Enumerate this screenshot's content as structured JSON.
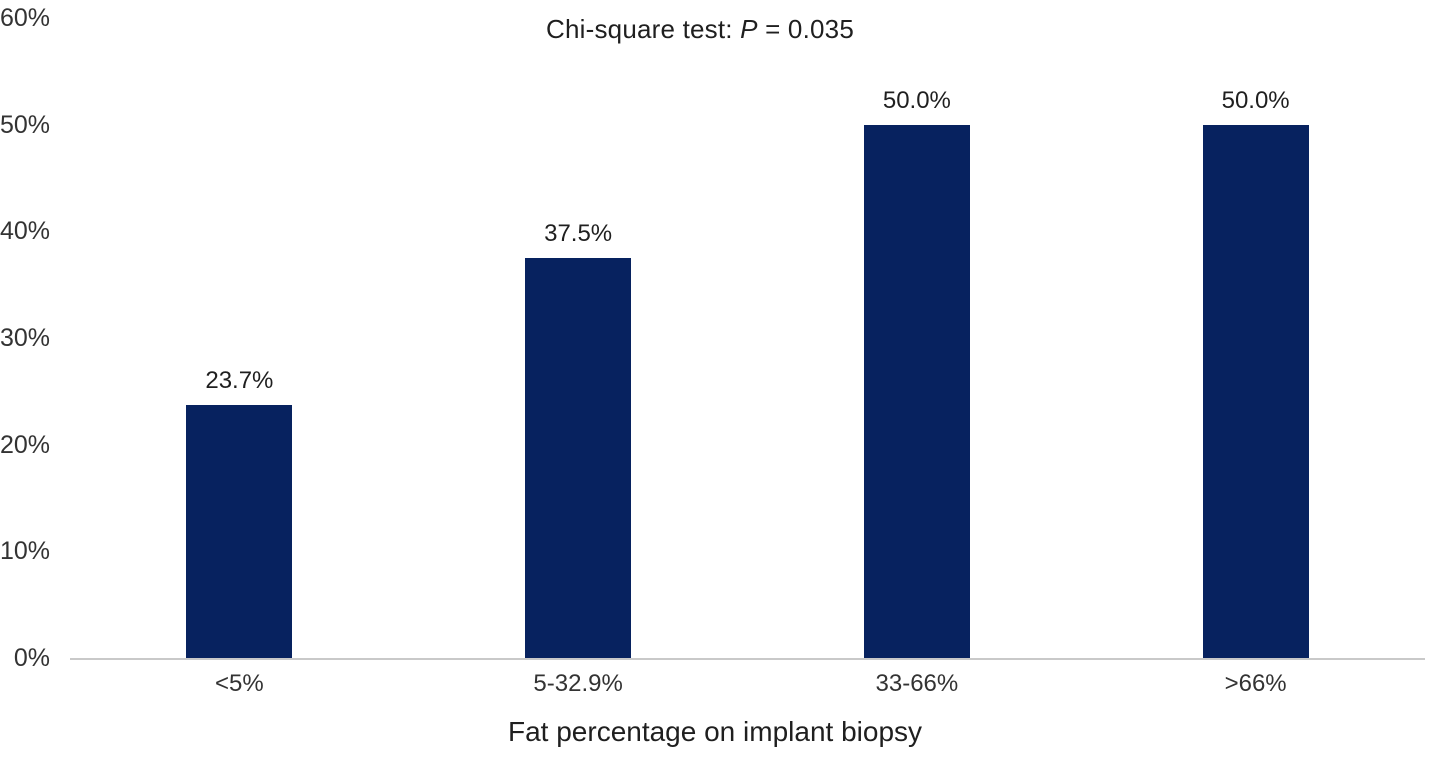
{
  "chart_data": {
    "type": "bar",
    "title": {
      "prefix": "Chi-square test: ",
      "italic": "P",
      "suffix": " = 0.035"
    },
    "categories": [
      "<5%",
      "5-32.9%",
      "33-66%",
      ">66%"
    ],
    "values": [
      23.7,
      37.5,
      50.0,
      50.0
    ],
    "value_labels": [
      "23.7%",
      "37.5%",
      "50.0%",
      "50.0%"
    ],
    "xlabel": "Fat percentage on implant biopsy",
    "ylabel": "",
    "ylim": [
      0,
      60
    ],
    "ytick_values": [
      0,
      10,
      20,
      30,
      40,
      50,
      60
    ],
    "ytick_labels": [
      "0%",
      "10%",
      "20%",
      "30%",
      "40%",
      "50%",
      "60%"
    ],
    "grid": false,
    "legend": false,
    "bar_color": "#07225f",
    "axis_line_color": "#c9c9c9",
    "text_color": "#1f1f1f"
  }
}
